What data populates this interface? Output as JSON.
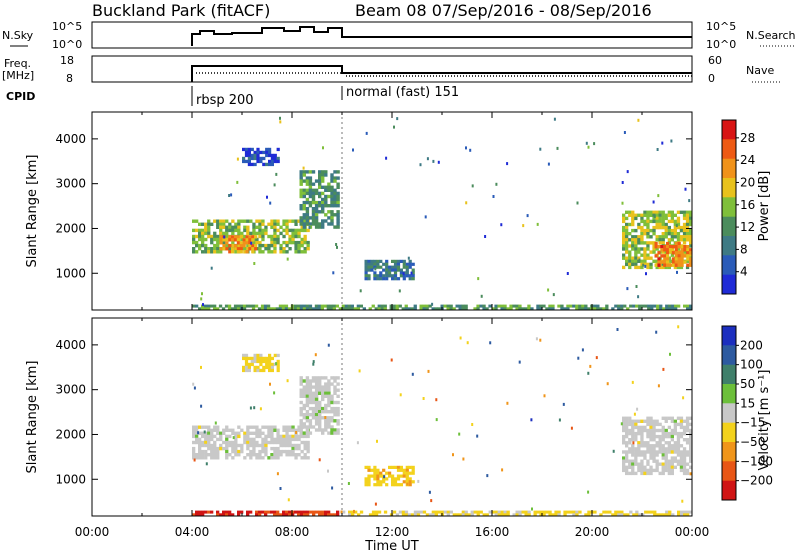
{
  "header": {
    "site": "Buckland Park (fitACF)",
    "beam_period": "Beam 08  07/Sep/2016 - 08/Sep/2016"
  },
  "summary_labels": {
    "nsky": "N.Sky",
    "freq": "Freq.",
    "freq_unit": "[MHz]",
    "cpid": "CPID",
    "nsearch": "N.Search",
    "nave": "Nave",
    "nsky_ticks": [
      "10^5",
      "10^0"
    ],
    "nsearch_ticks": [
      "10^5",
      "10^0"
    ],
    "freq_ticks": [
      "18",
      "8"
    ],
    "nave_ticks": [
      "60",
      "0"
    ]
  },
  "cpid_segments": [
    {
      "start_hour": 4.0,
      "end_hour": 10.0,
      "label": "rbsp 200"
    },
    {
      "start_hour": 10.0,
      "end_hour": 24.0,
      "label": "normal (fast) 151"
    }
  ],
  "colors": {
    "power_scale": [
      "#1f2bd6",
      "#2a5bb8",
      "#3e7a84",
      "#4b8c5c",
      "#7fbf3a",
      "#e8c21c",
      "#f0921a",
      "#ee5a14",
      "#d81414"
    ],
    "velocity_scale": [
      "#1c2fbf",
      "#2d5aa0",
      "#3f7f6a",
      "#6cbf3a",
      "#c8c8c8",
      "#f3d21c",
      "#f0951a",
      "#e85616",
      "#d01414"
    ]
  },
  "chart_data": [
    {
      "type": "heatmap",
      "name": "power",
      "xlabel": "",
      "ylabel": "Slant Range [km]",
      "xlim": [
        0,
        24
      ],
      "ylim": [
        180,
        4600
      ],
      "x_ticks": [
        "00:00",
        "04:00",
        "08:00",
        "12:00",
        "16:00",
        "20:00",
        "00:00"
      ],
      "y_ticks": [
        1000,
        2000,
        3000,
        4000
      ],
      "colorbar": {
        "label": "Power [dB]",
        "ticks": [
          "4",
          "8",
          "12",
          "16",
          "20",
          "24",
          "28"
        ],
        "range": [
          0,
          30
        ]
      },
      "regions": [
        {
          "t0": 4.0,
          "t1": 8.7,
          "r0": 1450,
          "r1": 2200,
          "value": 15
        },
        {
          "t0": 5.1,
          "t1": 6.6,
          "r0": 1450,
          "r1": 1850,
          "value": 22
        },
        {
          "t0": 8.3,
          "t1": 9.9,
          "r0": 2000,
          "r1": 3300,
          "value": 11
        },
        {
          "t0": 6.0,
          "t1": 7.5,
          "r0": 3400,
          "r1": 3800,
          "value": 4
        },
        {
          "t0": 10.9,
          "t1": 12.9,
          "r0": 850,
          "r1": 1300,
          "value": 8
        },
        {
          "t0": 21.2,
          "t1": 24.0,
          "r0": 1100,
          "r1": 2400,
          "value": 16
        },
        {
          "t0": 22.5,
          "t1": 24.0,
          "r0": 1150,
          "r1": 1700,
          "value": 23
        },
        {
          "t0": 4.0,
          "t1": 24.0,
          "r0": 180,
          "r1": 300,
          "value": 12
        }
      ]
    },
    {
      "type": "heatmap",
      "name": "velocity",
      "xlabel": "Time UT",
      "ylabel": "Slant Range [km]",
      "xlim": [
        0,
        24
      ],
      "ylim": [
        180,
        4600
      ],
      "x_ticks": [
        "00:00",
        "04:00",
        "08:00",
        "12:00",
        "16:00",
        "20:00",
        "00:00"
      ],
      "y_ticks": [
        1000,
        2000,
        3000,
        4000
      ],
      "colorbar": {
        "label": "Velocity [m s⁻¹]",
        "ticks": [
          "200",
          "100",
          "50",
          "15",
          "−15",
          "−50",
          "−100",
          "−200"
        ],
        "range": [
          -250,
          250
        ]
      },
      "regions": [
        {
          "t0": 4.0,
          "t1": 8.7,
          "r0": 1450,
          "r1": 2200,
          "value": 0
        },
        {
          "t0": 8.3,
          "t1": 9.9,
          "r0": 2000,
          "r1": 3300,
          "value": 5
        },
        {
          "t0": 6.0,
          "t1": 7.5,
          "r0": 3400,
          "r1": 3800,
          "value": -40
        },
        {
          "t0": 10.9,
          "t1": 12.9,
          "r0": 850,
          "r1": 1300,
          "value": -60
        },
        {
          "t0": 21.2,
          "t1": 24.0,
          "r0": 1100,
          "r1": 2400,
          "value": 0
        },
        {
          "t0": 4.0,
          "t1": 10.0,
          "r0": 180,
          "r1": 300,
          "value": -200
        },
        {
          "t0": 10.0,
          "t1": 24.0,
          "r0": 180,
          "r1": 300,
          "value": -40
        }
      ]
    }
  ]
}
